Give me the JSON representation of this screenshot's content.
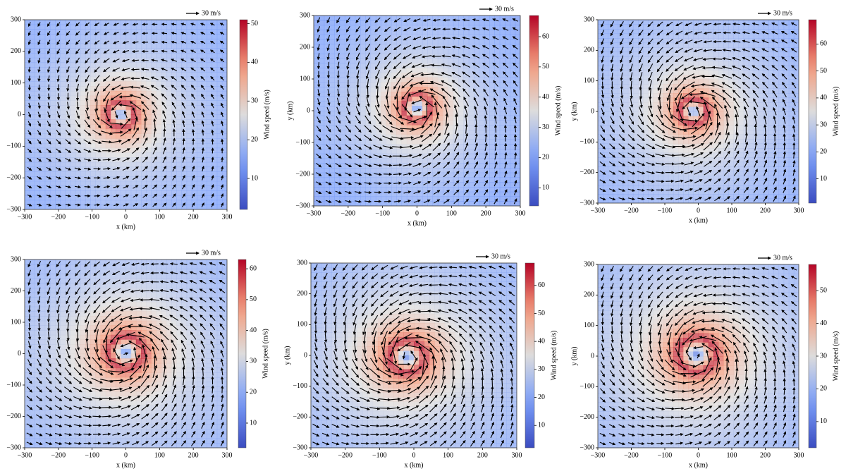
{
  "chart_data": [
    {
      "type": "quiver",
      "xlabel": "x (km)",
      "colorbar_label": "Wind speed (m/s)",
      "key_label": "30 m/s",
      "key_value": 30,
      "xlim": [
        -300,
        300
      ],
      "ylim": [
        -300,
        300
      ],
      "xticks": [
        {
          "value": -300,
          "label": "−300"
        },
        {
          "value": -200,
          "label": "−200"
        },
        {
          "value": -100,
          "label": "−100"
        },
        0,
        100,
        200,
        300
      ],
      "yticks": [
        {
          "value": -300,
          "label": "−300"
        },
        {
          "value": -200,
          "label": "−200"
        },
        {
          "value": -100,
          "label": "−100"
        },
        0,
        100,
        200,
        300
      ],
      "clim": [
        2,
        51
      ],
      "cticks": [
        10,
        20,
        30,
        40,
        50
      ],
      "colormap": "coolwarm",
      "vortex": {
        "center_x": -15,
        "center_y": 0,
        "rmw": 40,
        "vmax": 50
      }
    },
    {
      "type": "quiver",
      "xlabel": "x (km)",
      "ylabel": "y (km)",
      "colorbar_label": "Wind speed (m/s)",
      "key_label": "30 m/s",
      "key_value": 30,
      "xlim": [
        -300,
        300
      ],
      "ylim": [
        -300,
        300
      ],
      "xticks": [
        {
          "value": -300,
          "label": "−300"
        },
        {
          "value": -200,
          "label": "−200"
        },
        {
          "value": -100,
          "label": "−100"
        },
        0,
        100,
        200,
        300
      ],
      "yticks": [
        {
          "value": -300,
          "label": "−300"
        },
        {
          "value": -200,
          "label": "−200"
        },
        {
          "value": -100,
          "label": "−100"
        },
        0,
        100,
        200,
        300
      ],
      "clim": [
        4,
        67
      ],
      "cticks": [
        10,
        20,
        30,
        40,
        50,
        60
      ],
      "colormap": "coolwarm",
      "vortex": {
        "center_x": 0,
        "center_y": 10,
        "rmw": 40,
        "vmax": 65
      }
    },
    {
      "type": "quiver",
      "xlabel": "x (km)",
      "ylabel": "y (km)",
      "colorbar_label": "Wind speed (m/s)",
      "key_label": "30 m/s",
      "key_value": 30,
      "xlim": [
        -300,
        300
      ],
      "ylim": [
        -300,
        300
      ],
      "xticks": [
        {
          "value": -300,
          "label": "−300"
        },
        {
          "value": -200,
          "label": "−200"
        },
        {
          "value": -100,
          "label": "−100"
        },
        0,
        100,
        200,
        300
      ],
      "yticks": [
        {
          "value": -300,
          "label": "−300"
        },
        {
          "value": -200,
          "label": "−200"
        },
        {
          "value": -100,
          "label": "−100"
        },
        0,
        100,
        200,
        300
      ],
      "clim": [
        1,
        69
      ],
      "cticks": [
        10,
        20,
        30,
        40,
        50,
        60
      ],
      "colormap": "coolwarm",
      "vortex": {
        "center_x": -15,
        "center_y": 0,
        "rmw": 40,
        "vmax": 68
      }
    },
    {
      "type": "quiver",
      "xlabel": "x (km)",
      "colorbar_label": "Wind speed (m/s)",
      "key_label": "30 m/s",
      "key_value": 30,
      "xlim": [
        -300,
        300
      ],
      "ylim": [
        -300,
        300
      ],
      "xticks": [
        {
          "value": -300,
          "label": "−300"
        },
        {
          "value": -200,
          "label": "−200"
        },
        {
          "value": -100,
          "label": "−100"
        },
        0,
        100,
        200,
        300
      ],
      "yticks": [
        {
          "value": -300,
          "label": "−300"
        },
        {
          "value": -200,
          "label": "−200"
        },
        {
          "value": -100,
          "label": "−100"
        },
        0,
        100,
        200,
        300
      ],
      "clim": [
        2,
        63
      ],
      "cticks": [
        10,
        20,
        30,
        40,
        50,
        60
      ],
      "colormap": "coolwarm",
      "vortex": {
        "center_x": 0,
        "center_y": 5,
        "rmw": 50,
        "vmax": 62
      }
    },
    {
      "type": "quiver",
      "xlabel": "x (km)",
      "ylabel": "y (km)",
      "colorbar_label": "Wind speed (m/s)",
      "key_label": "30 m/s",
      "key_value": 30,
      "xlim": [
        -300,
        300
      ],
      "ylim": [
        -300,
        300
      ],
      "xticks": [
        {
          "value": -300,
          "label": "−300"
        },
        {
          "value": -200,
          "label": "−200"
        },
        {
          "value": -100,
          "label": "−100"
        },
        0,
        100,
        200,
        300
      ],
      "yticks": [
        {
          "value": -300,
          "label": "−300"
        },
        {
          "value": -200,
          "label": "−200"
        },
        {
          "value": -100,
          "label": "−100"
        },
        0,
        100,
        200,
        300
      ],
      "clim": [
        2,
        68
      ],
      "cticks": [
        10,
        20,
        30,
        40,
        50,
        60
      ],
      "colormap": "coolwarm",
      "vortex": {
        "center_x": -20,
        "center_y": -5,
        "rmw": 50,
        "vmax": 67
      }
    },
    {
      "type": "quiver",
      "xlabel": "x (km)",
      "ylabel": "y (km)",
      "colorbar_label": "Wind speed (m/s)",
      "key_label": "30 m/s",
      "key_value": 30,
      "xlim": [
        -300,
        300
      ],
      "ylim": [
        -300,
        300
      ],
      "xticks": [
        {
          "value": -300,
          "label": "−300"
        },
        {
          "value": -200,
          "label": "−200"
        },
        {
          "value": -100,
          "label": "−100"
        },
        0,
        100,
        200,
        300
      ],
      "yticks": [
        {
          "value": -300,
          "label": "−300"
        },
        {
          "value": -200,
          "label": "−200"
        },
        {
          "value": -100,
          "label": "−100"
        },
        0,
        100,
        200,
        300
      ],
      "clim": [
        2,
        58
      ],
      "cticks": [
        10,
        20,
        30,
        40,
        50
      ],
      "colormap": "coolwarm",
      "vortex": {
        "center_x": -5,
        "center_y": 5,
        "rmw": 55,
        "vmax": 57
      }
    }
  ]
}
